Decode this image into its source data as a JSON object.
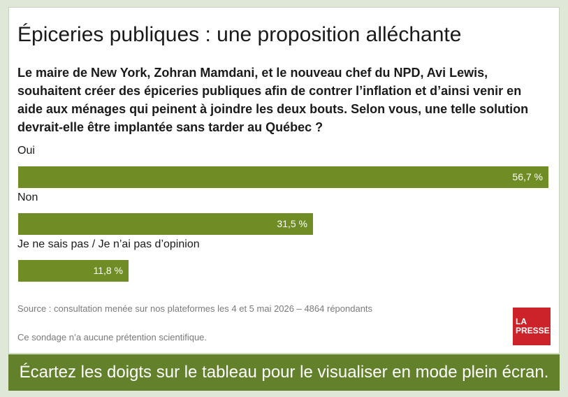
{
  "title": "Épiceries publiques : une proposition alléchante",
  "question": "Le maire de New York, Zohran Mamdani, et le nouveau chef du NPD, Avi Lewis, souhaitent créer des épiceries publiques afin de contrer l’inflation et d’ainsi venir en aide aux ménages qui peinent à joindre les deux bouts. Selon vous, une telle solution devrait-elle être implantée sans tarder au Québec ?",
  "chart_data": {
    "type": "bar",
    "orientation": "horizontal",
    "categories": [
      "Oui",
      "Non",
      "Je ne sais pas / Je n’ai pas d’opinion"
    ],
    "values": [
      56.7,
      31.5,
      11.8
    ],
    "value_labels": [
      "56,7 %",
      "31,5 %",
      "11,8 %"
    ],
    "xlim": [
      0,
      56.7
    ],
    "bar_color": "#6f8d24",
    "grid": false
  },
  "source": "Source : consultation menée sur nos plateformes les 4 et 5 mai 2026 – 4864 répondants",
  "disclaimer": "Ce sondage n’a aucune prétention scientifique.",
  "logo": {
    "line1": "LA",
    "line2": "PRESSE",
    "color": "#cc2229"
  },
  "banner": "Écartez les doigts sur le tableau pour le visualiser en mode plein écran."
}
